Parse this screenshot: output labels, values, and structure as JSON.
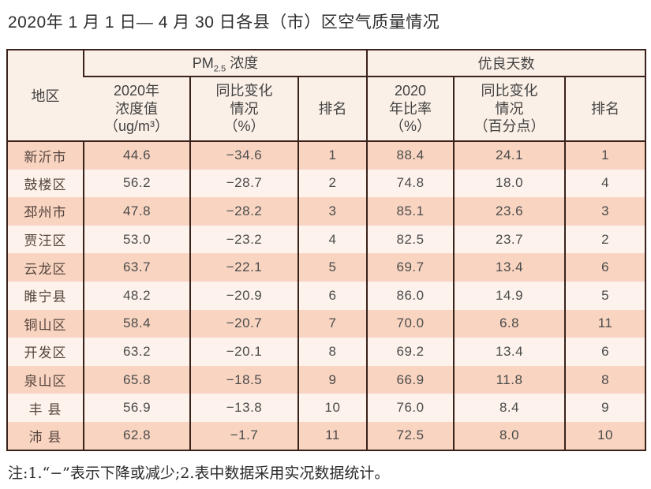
{
  "title": "2020年 1 月 1 日— 4 月 30 日各县（市）区空气质量情况",
  "footnote": "注:1.“−”表示下降或减少;2.表中数据采用实况数据统计。",
  "colors": {
    "row_odd": "#f9d5c1",
    "row_even": "#fdf3ec",
    "header_bg": "#fbf0e7",
    "border": "#3a221c"
  },
  "table": {
    "header": {
      "region": "地区",
      "pm_prefix": "PM",
      "pm_sub": "2.5",
      "pm_suffix": " 浓度",
      "good_days": "优良天数",
      "sub": [
        "2020年\n浓度值\n（ug/m³）",
        "同比变化\n情况\n（%）",
        "排名",
        "2020\n年比率\n（%）",
        "同比变化\n情况\n（百分点）",
        "排名"
      ]
    },
    "rows": [
      {
        "region": "新沂市",
        "pm_value": "44.6",
        "pm_change": "−34.6",
        "pm_rank": "1",
        "good_rate": "88.4",
        "good_change": "24.1",
        "good_rank": "1"
      },
      {
        "region": "鼓楼区",
        "pm_value": "56.2",
        "pm_change": "−28.7",
        "pm_rank": "2",
        "good_rate": "74.8",
        "good_change": "18.0",
        "good_rank": "4"
      },
      {
        "region": "邳州市",
        "pm_value": "47.8",
        "pm_change": "−28.2",
        "pm_rank": "3",
        "good_rate": "85.1",
        "good_change": "23.6",
        "good_rank": "3"
      },
      {
        "region": "贾汪区",
        "pm_value": "53.0",
        "pm_change": "−23.2",
        "pm_rank": "4",
        "good_rate": "82.5",
        "good_change": "23.7",
        "good_rank": "2"
      },
      {
        "region": "云龙区",
        "pm_value": "63.7",
        "pm_change": "−22.1",
        "pm_rank": "5",
        "good_rate": "69.7",
        "good_change": "13.4",
        "good_rank": "6"
      },
      {
        "region": "睢宁县",
        "pm_value": "48.2",
        "pm_change": "−20.9",
        "pm_rank": "6",
        "good_rate": "86.0",
        "good_change": "14.9",
        "good_rank": "5"
      },
      {
        "region": "铜山区",
        "pm_value": "58.4",
        "pm_change": "−20.7",
        "pm_rank": "7",
        "good_rate": "70.0",
        "good_change": "6.8",
        "good_rank": "11"
      },
      {
        "region": "开发区",
        "pm_value": "63.2",
        "pm_change": "−20.1",
        "pm_rank": "8",
        "good_rate": "69.2",
        "good_change": "13.4",
        "good_rank": "6"
      },
      {
        "region": "泉山区",
        "pm_value": "65.8",
        "pm_change": "−18.5",
        "pm_rank": "9",
        "good_rate": "66.9",
        "good_change": "11.8",
        "good_rank": "8"
      },
      {
        "region": "丰 县",
        "pm_value": "56.9",
        "pm_change": "−13.8",
        "pm_rank": "10",
        "good_rate": "76.0",
        "good_change": "8.4",
        "good_rank": "9"
      },
      {
        "region": "沛 县",
        "pm_value": "62.8",
        "pm_change": "−1.7",
        "pm_rank": "11",
        "good_rate": "72.5",
        "good_change": "8.0",
        "good_rank": "10"
      }
    ]
  }
}
